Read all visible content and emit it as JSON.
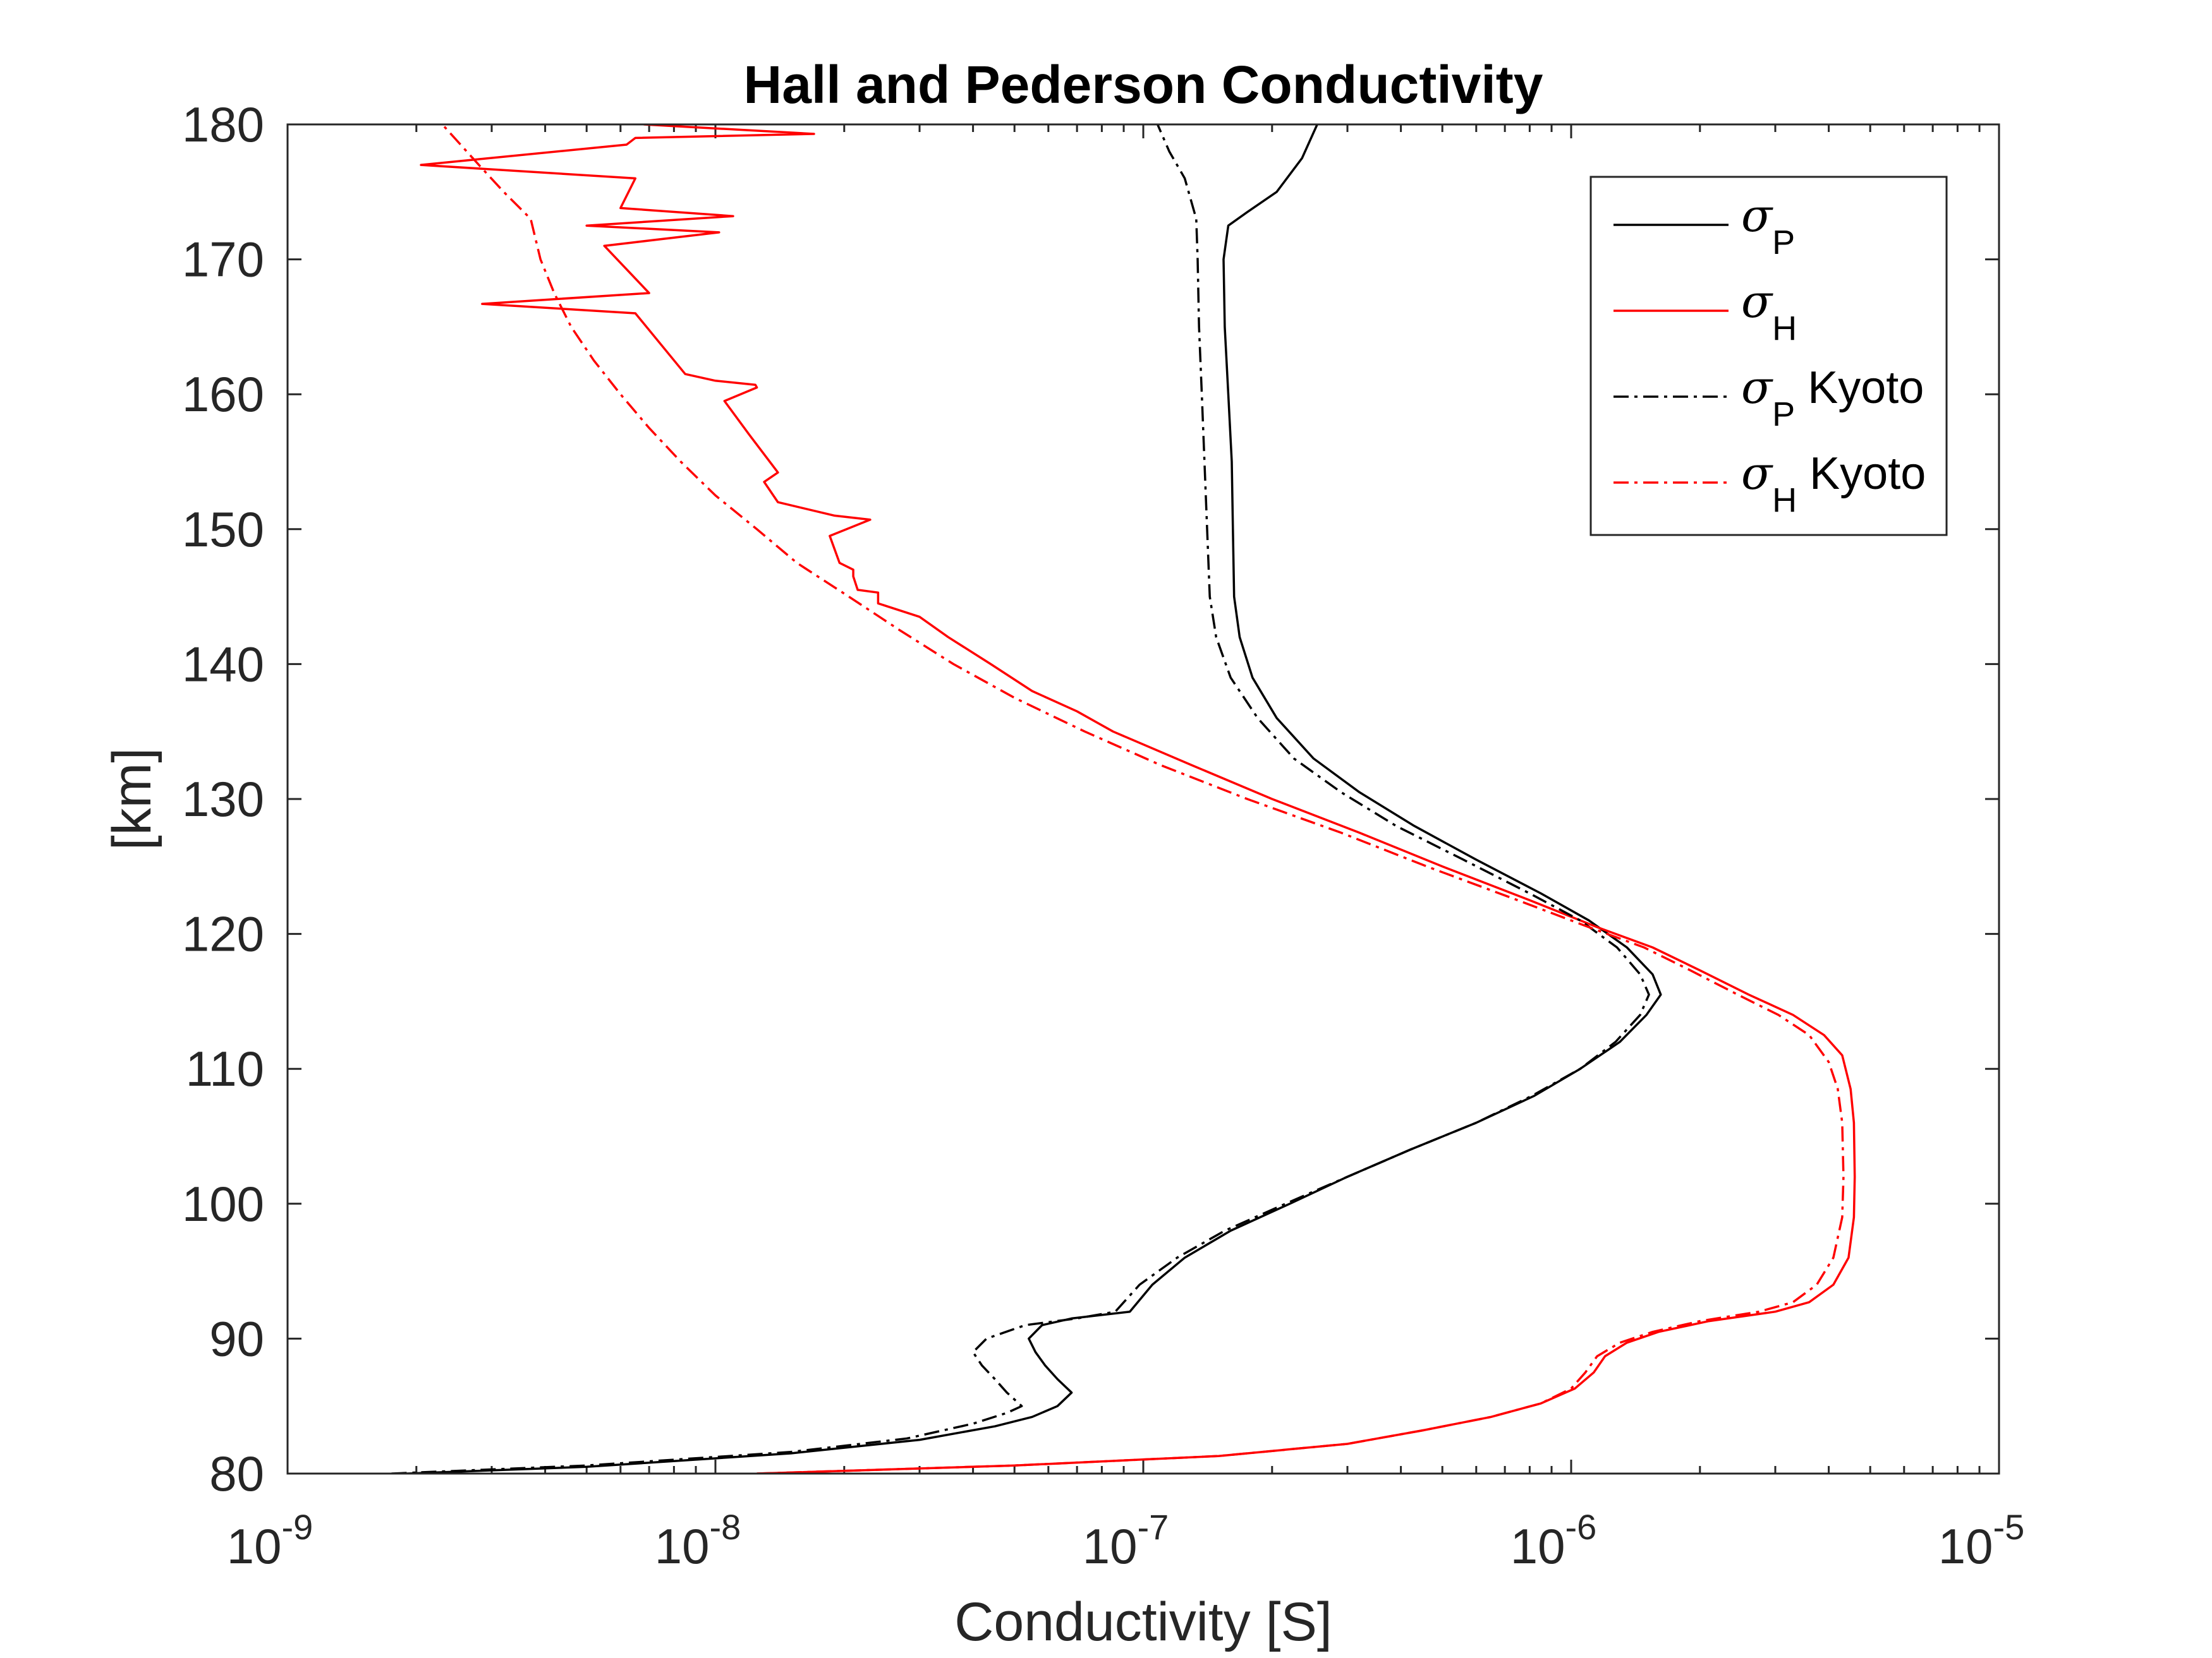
{
  "chart_data": {
    "type": "line",
    "title": "Hall and Pederson Conductivity",
    "xlabel": "Conductivity [S]",
    "ylabel": "[km]",
    "xscale": "log",
    "xlim": [
      1e-09,
      1e-05
    ],
    "ylim": [
      80,
      180
    ],
    "grid": false,
    "legend_position": "top-right",
    "x_ticks": [
      {
        "value": 1e-09,
        "base": "10",
        "exp": "-9"
      },
      {
        "value": 1e-08,
        "base": "10",
        "exp": "-8"
      },
      {
        "value": 1e-07,
        "base": "10",
        "exp": "-7"
      },
      {
        "value": 1e-06,
        "base": "10",
        "exp": "-6"
      },
      {
        "value": 1e-05,
        "base": "10",
        "exp": "-5"
      }
    ],
    "y_ticks": [
      "80",
      "90",
      "100",
      "110",
      "120",
      "130",
      "140",
      "150",
      "160",
      "170",
      "180"
    ],
    "series": [
      {
        "name": "σP",
        "symbol": "σ",
        "subscript": "P",
        "suffix": "",
        "color": "#000000",
        "dash": "solid",
        "points": [
          [
            1.9e-09,
            80
          ],
          [
            5e-09,
            80.5
          ],
          [
            1.5e-08,
            81.5
          ],
          [
            3e-08,
            82.5
          ],
          [
            4.5e-08,
            83.5
          ],
          [
            5.5e-08,
            84.2
          ],
          [
            6.3e-08,
            85
          ],
          [
            6.8e-08,
            86
          ],
          [
            6.3e-08,
            87
          ],
          [
            5.9e-08,
            88
          ],
          [
            5.6e-08,
            89
          ],
          [
            5.4e-08,
            90
          ],
          [
            5.8e-08,
            91
          ],
          [
            6.8e-08,
            91.5
          ],
          [
            9.3e-08,
            92
          ],
          [
            1.05e-07,
            94
          ],
          [
            1.25e-07,
            96
          ],
          [
            1.6e-07,
            98
          ],
          [
            2.2e-07,
            100
          ],
          [
            3e-07,
            102
          ],
          [
            4.2e-07,
            104
          ],
          [
            6e-07,
            106
          ],
          [
            8.2e-07,
            108
          ],
          [
            1.05e-06,
            110
          ],
          [
            1.3e-06,
            112
          ],
          [
            1.5e-06,
            114
          ],
          [
            1.62e-06,
            115.5
          ],
          [
            1.55e-06,
            117
          ],
          [
            1.35e-06,
            119
          ],
          [
            1.1e-06,
            121
          ],
          [
            8.5e-07,
            123
          ],
          [
            6e-07,
            125.5
          ],
          [
            4.3e-07,
            128
          ],
          [
            3.2e-07,
            130.5
          ],
          [
            2.5e-07,
            133
          ],
          [
            2.05e-07,
            136
          ],
          [
            1.8e-07,
            139
          ],
          [
            1.68e-07,
            142
          ],
          [
            1.63e-07,
            145
          ],
          [
            1.62e-07,
            150
          ],
          [
            1.61e-07,
            155
          ],
          [
            1.58e-07,
            160
          ],
          [
            1.55e-07,
            165
          ],
          [
            1.54e-07,
            170
          ],
          [
            1.58e-07,
            172.5
          ],
          [
            1.75e-07,
            173.5
          ],
          [
            2.05e-07,
            175
          ],
          [
            2.35e-07,
            177.5
          ],
          [
            2.55e-07,
            180
          ]
        ]
      },
      {
        "name": "σH",
        "symbol": "σ",
        "subscript": "H",
        "suffix": "",
        "color": "#ff0000",
        "dash": "solid",
        "points": [
          [
            1.25e-08,
            80
          ],
          [
            5e-08,
            80.6
          ],
          [
            1.5e-07,
            81.3
          ],
          [
            3e-07,
            82.2
          ],
          [
            4.5e-07,
            83.2
          ],
          [
            6.5e-07,
            84.2
          ],
          [
            8.5e-07,
            85.2
          ],
          [
            1.02e-06,
            86.3
          ],
          [
            1.13e-06,
            87.5
          ],
          [
            1.2e-06,
            88.7
          ],
          [
            1.35e-06,
            89.7
          ],
          [
            1.6e-06,
            90.5
          ],
          [
            2.1e-06,
            91.3
          ],
          [
            3e-06,
            92
          ],
          [
            3.6e-06,
            92.7
          ],
          [
            4.1e-06,
            94
          ],
          [
            4.45e-06,
            96
          ],
          [
            4.58e-06,
            99
          ],
          [
            4.6e-06,
            102
          ],
          [
            4.58e-06,
            106
          ],
          [
            4.5e-06,
            108.5
          ],
          [
            4.3e-06,
            111
          ],
          [
            3.9e-06,
            112.5
          ],
          [
            3.3e-06,
            114
          ],
          [
            2.6e-06,
            115.5
          ],
          [
            2e-06,
            117.3
          ],
          [
            1.55e-06,
            119
          ],
          [
            1.15e-06,
            120.5
          ],
          [
            8e-07,
            122.5
          ],
          [
            5e-07,
            125
          ],
          [
            3.2e-07,
            127.5
          ],
          [
            2e-07,
            130
          ],
          [
            1.3e-07,
            132.5
          ],
          [
            8.5e-08,
            135
          ],
          [
            7e-08,
            136.5
          ],
          [
            5.5e-08,
            138
          ],
          [
            4.4e-08,
            140
          ],
          [
            3.5e-08,
            142
          ],
          [
            3e-08,
            143.5
          ],
          [
            2.4e-08,
            144.5
          ],
          [
            2.4e-08,
            145.3
          ],
          [
            2.15e-08,
            145.5
          ],
          [
            2.1e-08,
            146.5
          ],
          [
            2.1e-08,
            147
          ],
          [
            1.95e-08,
            147.5
          ],
          [
            1.85e-08,
            149.5
          ],
          [
            2.3e-08,
            150.7
          ],
          [
            1.9e-08,
            151
          ],
          [
            1.4e-08,
            152
          ],
          [
            1.3e-08,
            153.5
          ],
          [
            1.4e-08,
            154.2
          ],
          [
            1.2e-08,
            157
          ],
          [
            1.05e-08,
            159.5
          ],
          [
            1.25e-08,
            160.5
          ],
          [
            1.24e-08,
            160.7
          ],
          [
            1e-08,
            161
          ],
          [
            8.5e-09,
            161.5
          ],
          [
            6.5e-09,
            166
          ],
          [
            2.85e-09,
            166.7
          ],
          [
            7e-09,
            167.5
          ],
          [
            5.5e-09,
            171
          ],
          [
            1.02e-08,
            172
          ],
          [
            5e-09,
            172.5
          ],
          [
            1.1e-08,
            173.2
          ],
          [
            6e-09,
            173.8
          ],
          [
            6.5e-09,
            176
          ],
          [
            2.05e-09,
            177
          ],
          [
            6.2e-09,
            178.5
          ],
          [
            6.5e-09,
            179
          ],
          [
            1.7e-08,
            179.3
          ],
          [
            6.8e-09,
            180
          ]
        ]
      },
      {
        "name": "σP Kyoto",
        "symbol": "σ",
        "subscript": "P",
        "suffix": " Kyoto",
        "color": "#000000",
        "dash": "dashdot",
        "points": [
          [
            1.75e-09,
            80
          ],
          [
            5e-09,
            80.6
          ],
          [
            1.5e-08,
            81.6
          ],
          [
            2.8e-08,
            82.6
          ],
          [
            4e-08,
            83.7
          ],
          [
            4.8e-08,
            84.5
          ],
          [
            5.2e-08,
            85
          ],
          [
            4.8e-08,
            86
          ],
          [
            4.5e-08,
            87
          ],
          [
            4.2e-08,
            88
          ],
          [
            4e-08,
            89
          ],
          [
            4.3e-08,
            90
          ],
          [
            5.3e-08,
            91
          ],
          [
            7e-08,
            91.5
          ],
          [
            8.6e-08,
            92
          ],
          [
            9.8e-08,
            94
          ],
          [
            1.2e-07,
            96
          ],
          [
            1.55e-07,
            98
          ],
          [
            2.15e-07,
            100
          ],
          [
            3e-07,
            102
          ],
          [
            4.2e-07,
            104
          ],
          [
            6e-07,
            106
          ],
          [
            8.1e-07,
            108
          ],
          [
            1.05e-06,
            110
          ],
          [
            1.27e-06,
            112
          ],
          [
            1.45e-06,
            114
          ],
          [
            1.52e-06,
            115.5
          ],
          [
            1.45e-06,
            117
          ],
          [
            1.28e-06,
            119
          ],
          [
            1.05e-06,
            121
          ],
          [
            8e-07,
            123
          ],
          [
            5.6e-07,
            125.5
          ],
          [
            3.9e-07,
            128
          ],
          [
            2.9e-07,
            130.5
          ],
          [
            2.25e-07,
            133
          ],
          [
            1.85e-07,
            136
          ],
          [
            1.6e-07,
            139
          ],
          [
            1.48e-07,
            142
          ],
          [
            1.43e-07,
            145
          ],
          [
            1.41e-07,
            150
          ],
          [
            1.39e-07,
            155
          ],
          [
            1.37e-07,
            160
          ],
          [
            1.35e-07,
            165
          ],
          [
            1.34e-07,
            170
          ],
          [
            1.33e-07,
            173
          ],
          [
            1.25e-07,
            176
          ],
          [
            1.15e-07,
            178
          ],
          [
            1.08e-07,
            180
          ]
        ]
      },
      {
        "name": "σH Kyoto",
        "symbol": "σ",
        "subscript": "H",
        "suffix": " Kyoto",
        "color": "#ff0000",
        "dash": "dashdot",
        "points": [
          [
            1.25e-08,
            80
          ],
          [
            5e-08,
            80.6
          ],
          [
            1.5e-07,
            81.3
          ],
          [
            3e-07,
            82.2
          ],
          [
            4.5e-07,
            83.2
          ],
          [
            6.5e-07,
            84.2
          ],
          [
            8.5e-07,
            85.2
          ],
          [
            1e-06,
            86.3
          ],
          [
            1.08e-06,
            87.5
          ],
          [
            1.15e-06,
            88.7
          ],
          [
            1.3e-06,
            89.7
          ],
          [
            1.55e-06,
            90.5
          ],
          [
            2e-06,
            91.3
          ],
          [
            2.75e-06,
            92
          ],
          [
            3.3e-06,
            92.7
          ],
          [
            3.75e-06,
            94
          ],
          [
            4.1e-06,
            96
          ],
          [
            4.3e-06,
            99
          ],
          [
            4.33e-06,
            102
          ],
          [
            4.3e-06,
            106
          ],
          [
            4.2e-06,
            108.5
          ],
          [
            4e-06,
            110.5
          ],
          [
            3.6e-06,
            112.5
          ],
          [
            3.05e-06,
            114
          ],
          [
            2.45e-06,
            115.5
          ],
          [
            1.9e-06,
            117.3
          ],
          [
            1.48e-06,
            119
          ],
          [
            1.1e-06,
            120.5
          ],
          [
            7.5e-07,
            122.5
          ],
          [
            4.6e-07,
            125
          ],
          [
            2.9e-07,
            127.5
          ],
          [
            1.75e-07,
            130
          ],
          [
            1.1e-07,
            132.5
          ],
          [
            7.3e-08,
            135
          ],
          [
            5e-08,
            137.5
          ],
          [
            3.6e-08,
            140
          ],
          [
            2.7e-08,
            142.5
          ],
          [
            2.05e-08,
            145
          ],
          [
            1.55e-08,
            147.5
          ],
          [
            1.25e-08,
            150
          ],
          [
            1e-08,
            152.5
          ],
          [
            8.3e-09,
            155
          ],
          [
            7e-09,
            157.5
          ],
          [
            6e-09,
            160
          ],
          [
            5.2e-09,
            162.5
          ],
          [
            4.6e-09,
            165
          ],
          [
            4.2e-09,
            167.5
          ],
          [
            3.9e-09,
            170
          ],
          [
            3.7e-09,
            173
          ],
          [
            3.2e-09,
            175
          ],
          [
            2.8e-09,
            177
          ],
          [
            2.3e-09,
            180
          ]
        ]
      }
    ]
  }
}
